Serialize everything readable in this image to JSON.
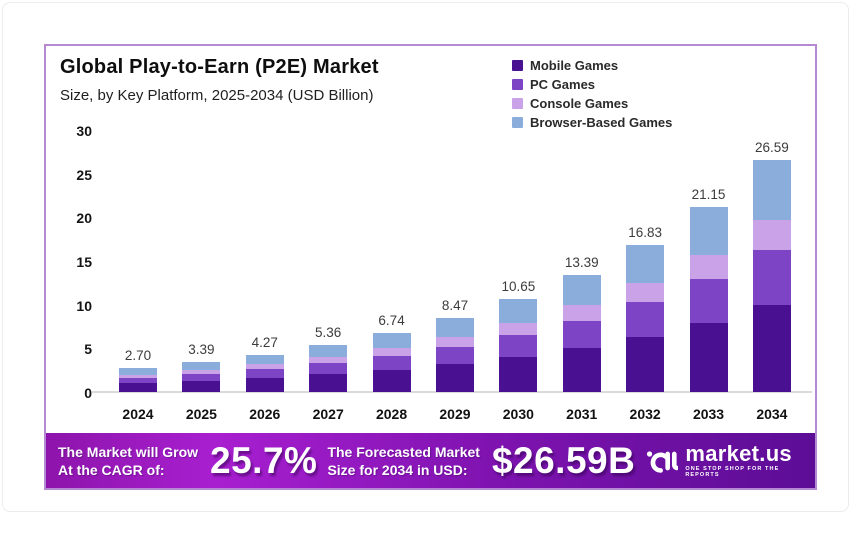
{
  "header": {
    "title": "Global Play-to-Earn (P2E) Market",
    "subtitle": "Size, by Key Platform, 2025-2034 (USD Billion)"
  },
  "chart_data": {
    "type": "bar",
    "stacked": true,
    "title": "Global Play-to-Earn (P2E) Market Size, by Key Platform, 2025-2034 (USD Billion)",
    "categories": [
      "2024",
      "2025",
      "2026",
      "2027",
      "2028",
      "2029",
      "2030",
      "2031",
      "2032",
      "2033",
      "2034"
    ],
    "totals": [
      2.7,
      3.39,
      4.27,
      5.36,
      6.74,
      8.47,
      10.65,
      13.39,
      16.83,
      21.15,
      26.59
    ],
    "series": [
      {
        "name": "Mobile Games",
        "color": "#4a1092",
        "values": [
          1.01,
          1.27,
          1.6,
          2.01,
          2.53,
          3.18,
          3.99,
          5.02,
          6.31,
          7.93,
          9.97
        ]
      },
      {
        "name": "PC Games",
        "color": "#7d44c6",
        "values": [
          0.63,
          0.8,
          1.0,
          1.26,
          1.58,
          1.99,
          2.5,
          3.15,
          3.96,
          4.97,
          6.25
        ]
      },
      {
        "name": "Console Games",
        "color": "#c9a2e8",
        "values": [
          0.35,
          0.44,
          0.56,
          0.7,
          0.88,
          1.1,
          1.38,
          1.74,
          2.19,
          2.75,
          3.46
        ]
      },
      {
        "name": "Browser-Based Games",
        "color": "#8baddc",
        "values": [
          0.71,
          0.88,
          1.11,
          1.39,
          1.75,
          2.2,
          2.78,
          3.48,
          4.37,
          5.5,
          6.91
        ]
      }
    ],
    "ylim": [
      0,
      30
    ],
    "yticks": [
      0,
      5,
      10,
      15,
      20,
      25,
      30
    ],
    "grid": false,
    "legend_position": "top-right"
  },
  "banner": {
    "cagr_label_line1": "The Market will Grow",
    "cagr_label_line2": "At the CAGR of:",
    "cagr_value": "25.7%",
    "forecast_label_line1": "The Forecasted Market",
    "forecast_label_line2": "Size for 2034 in USD:",
    "forecast_value": "$26.59B",
    "brand_name": "market.us",
    "brand_tagline": "ONE STOP SHOP FOR THE REPORTS",
    "gradient": [
      "#8d14ab",
      "#a81fd0",
      "#7f13b0",
      "#5c0d96"
    ]
  },
  "colors": {
    "card_border": "#b58ad2",
    "axis_line": "#dadada"
  }
}
